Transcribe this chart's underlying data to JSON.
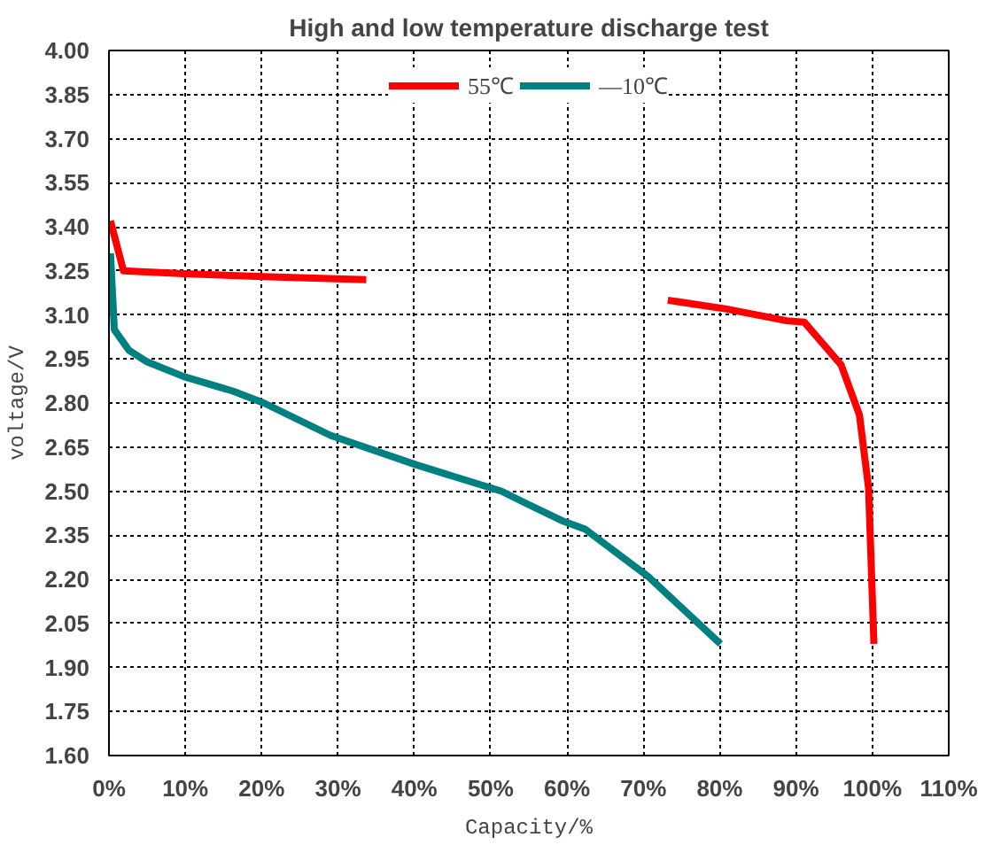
{
  "chart_data": {
    "type": "line",
    "title": "High and low temperature discharge test",
    "xlabel": "Capacity/%",
    "ylabel": "voltage/V",
    "xlim": [
      0,
      110
    ],
    "ylim": [
      1.6,
      4.0
    ],
    "xticks": [
      {
        "value": 0,
        "label": "0%"
      },
      {
        "value": 10,
        "label": "10%"
      },
      {
        "value": 20,
        "label": "20%"
      },
      {
        "value": 30,
        "label": "30%"
      },
      {
        "value": 40,
        "label": "40%"
      },
      {
        "value": 50,
        "label": "50%"
      },
      {
        "value": 60,
        "label": "60%"
      },
      {
        "value": 70,
        "label": "70%"
      },
      {
        "value": 80,
        "label": "80%"
      },
      {
        "value": 90,
        "label": "90%"
      },
      {
        "value": 100,
        "label": "100%"
      },
      {
        "value": 110,
        "label": "110%"
      }
    ],
    "yticks": [
      {
        "value": 1.6,
        "label": "1.60"
      },
      {
        "value": 1.75,
        "label": "1.75"
      },
      {
        "value": 1.9,
        "label": "1.90"
      },
      {
        "value": 2.05,
        "label": "2.05"
      },
      {
        "value": 2.2,
        "label": "2.20"
      },
      {
        "value": 2.35,
        "label": "2.35"
      },
      {
        "value": 2.5,
        "label": "2.50"
      },
      {
        "value": 2.65,
        "label": "2.65"
      },
      {
        "value": 2.8,
        "label": "2.80"
      },
      {
        "value": 2.95,
        "label": "2.95"
      },
      {
        "value": 3.1,
        "label": "3.10"
      },
      {
        "value": 3.25,
        "label": "3.25"
      },
      {
        "value": 3.4,
        "label": "3.40"
      },
      {
        "value": 3.55,
        "label": "3.55"
      },
      {
        "value": 3.7,
        "label": "3.70"
      },
      {
        "value": 3.85,
        "label": "3.85"
      },
      {
        "value": 4.0,
        "label": "4.00"
      }
    ],
    "grid": true,
    "legend": "top",
    "marker": "none",
    "line_style": "solid",
    "series": [
      {
        "name": "55℃",
        "color": "#ff0000",
        "x": [
          0.2,
          1.9,
          9.8,
          21,
          33.7,
          50,
          73.2,
          80.9,
          88.8,
          91.1,
          95.9,
          98.3,
          99.5,
          100.2
        ],
        "values": [
          3.42,
          3.25,
          3.24,
          3.23,
          3.22,
          null,
          3.15,
          3.12,
          3.08,
          3.075,
          2.93,
          2.76,
          2.51,
          1.98
        ]
      },
      {
        "name": "—10℃",
        "color": "#008080",
        "x": [
          0.2,
          0.7,
          2.6,
          5,
          9.8,
          16.3,
          20.3,
          29,
          40.2,
          51.4,
          54.5,
          59.3,
          62.4,
          70.6,
          80.1
        ],
        "values": [
          3.31,
          3.05,
          2.98,
          2.94,
          2.89,
          2.84,
          2.8,
          2.69,
          2.59,
          2.5,
          2.46,
          2.4,
          2.37,
          2.21,
          1.98
        ]
      }
    ]
  }
}
